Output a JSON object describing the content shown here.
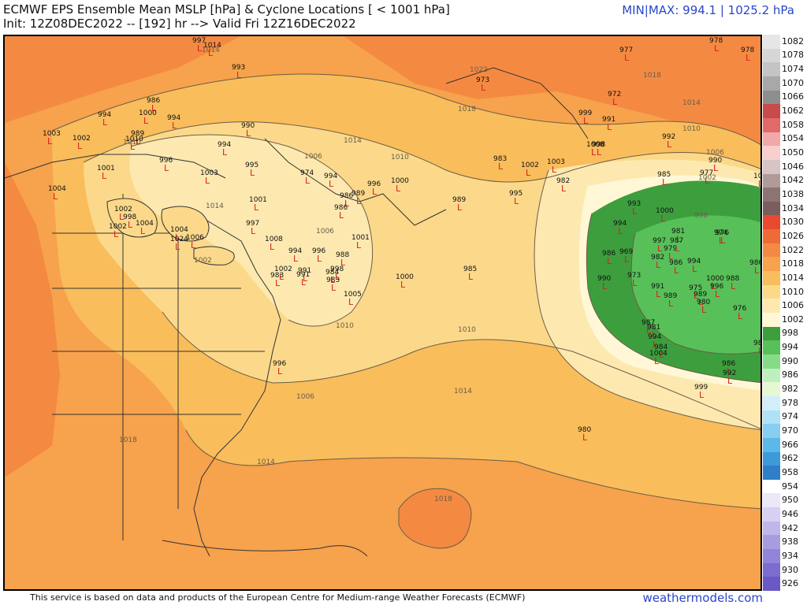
{
  "header": {
    "title": "ECMWF EPS Ensemble Mean MSLP [hPa] & Cyclone Locations [ < 1001 hPa]",
    "init_line": "Init: 12Z08DEC2022 -- [192] hr --> Valid Fri 12Z16DEC2022",
    "minmax": "MIN|MAX: 994.1 | 1025.2 hPa"
  },
  "footer": {
    "credit": "This service is based on data and products of the European Centre for Medium-range Weather Forecasts (ECMWF)",
    "brand": "weathermodels.com"
  },
  "colorbar": {
    "levels": [
      {
        "label": "1082",
        "color": "#e6e6e6"
      },
      {
        "label": "1078",
        "color": "#d6d6d6"
      },
      {
        "label": "1074",
        "color": "#c4c4c4"
      },
      {
        "label": "1070",
        "color": "#a8a8a8"
      },
      {
        "label": "1066",
        "color": "#8e8e8e"
      },
      {
        "label": "1062",
        "color": "#c94a4a"
      },
      {
        "label": "1058",
        "color": "#e06a6a"
      },
      {
        "label": "1054",
        "color": "#f2a8a8"
      },
      {
        "label": "1050",
        "color": "#f7cfcf"
      },
      {
        "label": "1046",
        "color": "#d8c4c4"
      },
      {
        "label": "1042",
        "color": "#b09a9a"
      },
      {
        "label": "1038",
        "color": "#8c7474"
      },
      {
        "label": "1034",
        "color": "#7a5e5e"
      },
      {
        "label": "1030",
        "color": "#e84a2e"
      },
      {
        "label": "1026",
        "color": "#f06a38"
      },
      {
        "label": "1022",
        "color": "#f48a42"
      },
      {
        "label": "1018",
        "color": "#f7a24c"
      },
      {
        "label": "1014",
        "color": "#f9bd5c"
      },
      {
        "label": "1010",
        "color": "#fcd98a"
      },
      {
        "label": "1006",
        "color": "#fde9b0"
      },
      {
        "label": "1002",
        "color": "#fff7d6"
      },
      {
        "label": "998",
        "color": "#3d9e3d"
      },
      {
        "label": "994",
        "color": "#58c058"
      },
      {
        "label": "990",
        "color": "#86dc86"
      },
      {
        "label": "986",
        "color": "#bdf0bd"
      },
      {
        "label": "982",
        "color": "#e6f8d2"
      },
      {
        "label": "978",
        "color": "#d2eefa"
      },
      {
        "label": "974",
        "color": "#b0e2f7"
      },
      {
        "label": "970",
        "color": "#86cff0"
      },
      {
        "label": "966",
        "color": "#5cb8e8"
      },
      {
        "label": "962",
        "color": "#3c9ad8"
      },
      {
        "label": "958",
        "color": "#2f7ec8"
      },
      {
        "label": "954",
        "color": "#ffffff"
      },
      {
        "label": "950",
        "color": "#ece8f8"
      },
      {
        "label": "946",
        "color": "#d8d0f2"
      },
      {
        "label": "942",
        "color": "#c0b6ea"
      },
      {
        "label": "938",
        "color": "#a89ce0"
      },
      {
        "label": "934",
        "color": "#9284d8"
      },
      {
        "label": "930",
        "color": "#7c6ccf"
      },
      {
        "label": "926",
        "color": "#6a58c4"
      }
    ]
  },
  "map": {
    "isobar_labels": [
      "1014",
      "1022",
      "1018",
      "1018",
      "1014",
      "1010",
      "1006",
      "1002",
      "1010",
      "1006",
      "1010",
      "1014",
      "1014",
      "1010",
      "1006",
      "1010",
      "1014",
      "1018",
      "1018",
      "1014",
      "998",
      "1002",
      "1006"
    ],
    "cyclones": [
      "997",
      "1014",
      "993",
      "977",
      "978",
      "978",
      "986",
      "994",
      "1000",
      "994",
      "989",
      "990",
      "973",
      "972",
      "999",
      "991",
      "1003",
      "1002",
      "996",
      "1010",
      "994",
      "1003",
      "1008",
      "998",
      "992",
      "1001",
      "995",
      "983",
      "1002",
      "1003",
      "985",
      "1004",
      "1001",
      "982",
      "1002",
      "998",
      "1004",
      "974",
      "994",
      "986",
      "996",
      "1000",
      "989",
      "990",
      "977",
      "1002",
      "997",
      "990",
      "1002",
      "1004",
      "1006",
      "1024",
      "986",
      "989",
      "995",
      "993",
      "1000",
      "994",
      "1008",
      "994",
      "996",
      "991",
      "988",
      "1001",
      "998",
      "986",
      "969",
      "981",
      "997",
      "979",
      "982",
      "986",
      "986",
      "987",
      "994",
      "974",
      "976",
      "1002",
      "983",
      "991",
      "984",
      "983",
      "990",
      "1005",
      "1000",
      "985",
      "973",
      "991",
      "989",
      "975",
      "989",
      "1000",
      "996",
      "980",
      "988",
      "987",
      "981",
      "984",
      "994",
      "1004",
      "986",
      "992",
      "999",
      "980",
      "996",
      "976",
      "989"
    ],
    "cyclone_marker": "L",
    "background_colors": {
      "land_border": "#333333",
      "bg_1022": "#f48a42",
      "bg_1018": "#f7a24c",
      "bg_1014": "#f9bd5c",
      "bg_1010": "#fcd98a",
      "bg_1006": "#fde9b0",
      "bg_1002": "#fff7d6",
      "bg_998": "#3d9e3d",
      "bg_994": "#58c058"
    }
  }
}
